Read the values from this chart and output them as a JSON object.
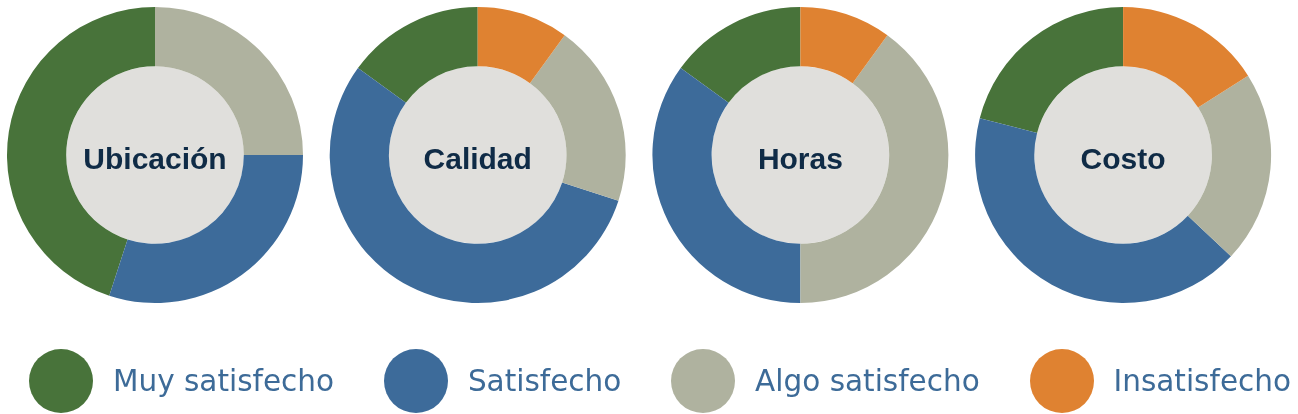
{
  "chart_data": {
    "type": "donut",
    "categories": [
      "Muy satisfecho",
      "Satisfecho",
      "Algo satisfecho",
      "Insatisfecho"
    ],
    "colors": [
      "#48733a",
      "#3d6b9a",
      "#afb29f",
      "#df8231"
    ],
    "legend": "bottom",
    "series": [
      {
        "name": "Ubicación",
        "values": [
          45,
          30,
          25,
          0
        ]
      },
      {
        "name": "Calidad",
        "values": [
          15,
          55,
          20,
          10
        ]
      },
      {
        "name": "Horas",
        "values": [
          15,
          35,
          40,
          10
        ]
      },
      {
        "name": "Costo",
        "values": [
          21,
          42,
          21,
          16
        ]
      }
    ]
  }
}
